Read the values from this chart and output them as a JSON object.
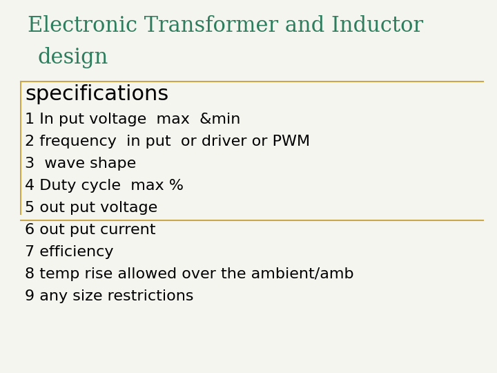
{
  "title_line1": "Electronic Transformer and Inductor",
  "title_line2": "design",
  "title_color": "#2e7d5e",
  "title_fontsize": 22,
  "section_header": "specifications",
  "section_header_fontsize": 22,
  "section_header_color": "#000000",
  "items": [
    "1 In put voltage  max  &min",
    "2 frequency  in put  or driver or PWM",
    "3  wave shape",
    "4 Duty cycle  max %",
    "5 out put voltage",
    "6 out put current",
    "7 efficiency",
    "8 temp rise allowed over the ambient/amb",
    "9 any size restrictions"
  ],
  "item_fontsize": 16,
  "item_color": "#000000",
  "line_color": "#c8a84b",
  "bg_color": "#f5f5f0",
  "border_color": "#c8a84b"
}
